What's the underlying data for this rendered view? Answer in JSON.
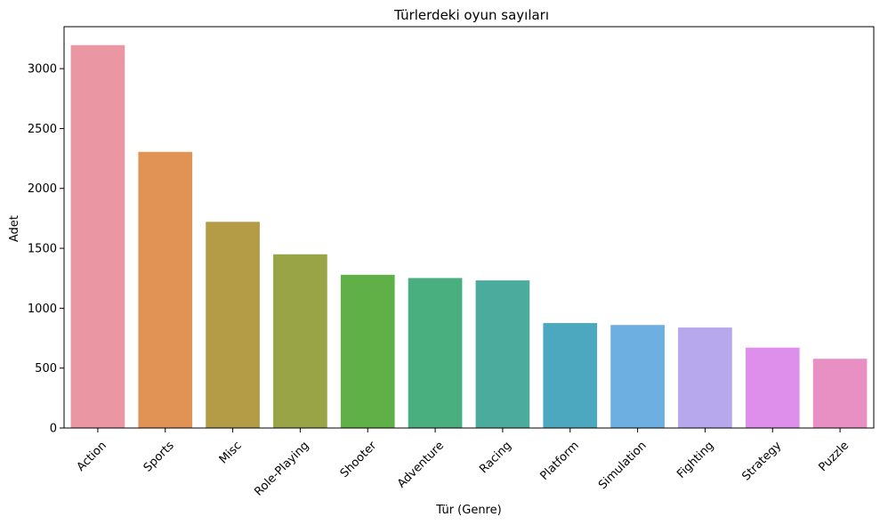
{
  "chart_data": {
    "type": "bar",
    "title": "Türlerdeki oyun sayıları",
    "xlabel": "Tür (Genre)",
    "ylabel": "Adet",
    "categories": [
      "Action",
      "Sports",
      "Misc",
      "Role-Playing",
      "Shooter",
      "Adventure",
      "Racing",
      "Platform",
      "Simulation",
      "Fighting",
      "Strategy",
      "Puzzle"
    ],
    "values": [
      3196,
      2305,
      1721,
      1450,
      1279,
      1252,
      1232,
      876,
      860,
      839,
      671,
      578
    ],
    "colors": [
      "#ea96a3",
      "#e09354",
      "#b49c46",
      "#99a446",
      "#5fb046",
      "#49af7f",
      "#4bab9c",
      "#4ba8bf",
      "#6cafe0",
      "#b7a7ec",
      "#dd8feb",
      "#e88fc4"
    ],
    "ylim": [
      0,
      3350
    ],
    "yticks": [
      0,
      500,
      1000,
      1500,
      2000,
      2500,
      3000
    ],
    "grid": false,
    "tick_label_rotation": -45
  }
}
